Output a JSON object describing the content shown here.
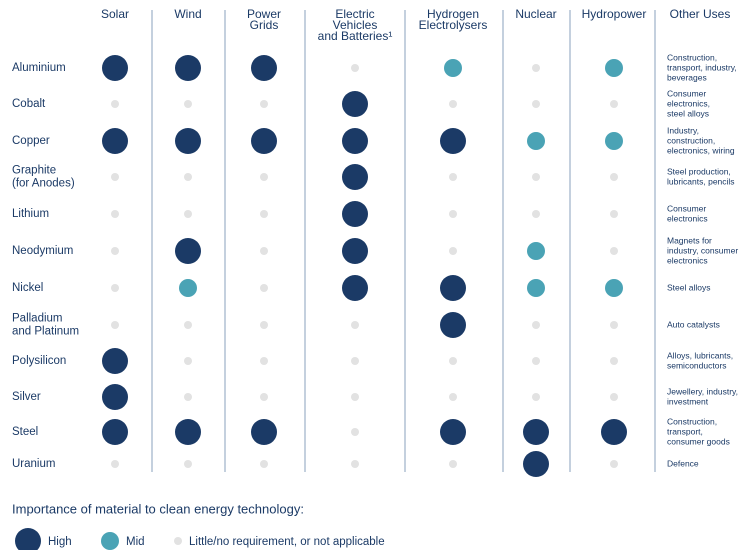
{
  "columns": [
    [
      "Solar"
    ],
    [
      "Wind"
    ],
    [
      "Power",
      "Grids"
    ],
    [
      "Electric",
      "Vehicles",
      "and Batteries¹"
    ],
    [
      "Hydrogen",
      "Electrolysers"
    ],
    [
      "Nuclear"
    ],
    [
      "Hydropower"
    ]
  ],
  "other_uses_header": "Other Uses",
  "rows": [
    {
      "name": [
        "Aluminium"
      ],
      "levels": [
        0,
        0,
        0,
        2,
        1,
        2,
        1
      ],
      "other_uses": [
        "Construction,",
        "transport, industry,",
        "beverages"
      ]
    },
    {
      "name": [
        "Cobalt"
      ],
      "levels": [
        2,
        2,
        2,
        0,
        2,
        2,
        2
      ],
      "other_uses": [
        "Consumer",
        "electronics,",
        "steel alloys"
      ]
    },
    {
      "name": [
        "Copper"
      ],
      "levels": [
        0,
        0,
        0,
        0,
        0,
        1,
        1
      ],
      "other_uses": [
        "Industry,",
        "construction,",
        "electronics, wiring"
      ]
    },
    {
      "name": [
        "Graphite",
        "(for Anodes)"
      ],
      "levels": [
        2,
        2,
        2,
        0,
        2,
        2,
        2
      ],
      "other_uses": [
        "Steel production,",
        "lubricants, pencils"
      ]
    },
    {
      "name": [
        "Lithium"
      ],
      "levels": [
        2,
        2,
        2,
        0,
        2,
        2,
        2
      ],
      "other_uses": [
        "Consumer",
        "electronics"
      ]
    },
    {
      "name": [
        "Neodymium"
      ],
      "levels": [
        2,
        0,
        2,
        0,
        2,
        1,
        2
      ],
      "other_uses": [
        "Magnets for",
        "industry, consumer",
        "electronics"
      ]
    },
    {
      "name": [
        "Nickel"
      ],
      "levels": [
        2,
        1,
        2,
        0,
        0,
        1,
        1
      ],
      "other_uses": [
        "Steel alloys"
      ]
    },
    {
      "name": [
        "Palladium",
        "and Platinum"
      ],
      "levels": [
        2,
        2,
        2,
        2,
        0,
        2,
        2
      ],
      "other_uses": [
        "Auto catalysts"
      ]
    },
    {
      "name": [
        "Polysilicon"
      ],
      "levels": [
        0,
        2,
        2,
        2,
        2,
        2,
        2
      ],
      "other_uses": [
        "Alloys, lubricants,",
        "semiconductors"
      ]
    },
    {
      "name": [
        "Silver"
      ],
      "levels": [
        0,
        2,
        2,
        2,
        2,
        2,
        2
      ],
      "other_uses": [
        "Jewellery, industry,",
        "investment"
      ]
    },
    {
      "name": [
        "Steel"
      ],
      "levels": [
        0,
        0,
        0,
        2,
        0,
        0,
        0
      ],
      "other_uses": [
        "Construction,",
        "transport,",
        "consumer goods"
      ]
    },
    {
      "name": [
        "Uranium"
      ],
      "levels": [
        2,
        2,
        2,
        2,
        2,
        0,
        2
      ],
      "other_uses": [
        "Defence"
      ]
    }
  ],
  "legend": {
    "title": "Importance of material to clean energy technology:",
    "items": [
      {
        "label": "High",
        "color": "#1b3a66"
      },
      {
        "label": "Mid",
        "color": "#4aa3b5"
      },
      {
        "label": "Little/no requirement, or not applicable",
        "color": "#e2e2e2"
      }
    ]
  }
}
